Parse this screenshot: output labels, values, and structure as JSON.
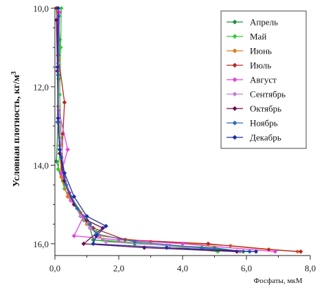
{
  "chart_data": {
    "type": "scatter",
    "title": "",
    "xlabel": "Фосфаты, мкМ",
    "ylabel": "Условная плотность, кг/м",
    "ylabel_sup": "3",
    "xlim": [
      0,
      8
    ],
    "ylim": [
      16.3,
      10
    ],
    "y_inverted": true,
    "xticks": [
      0,
      2,
      4,
      6,
      8
    ],
    "xtick_labels": [
      "0,0",
      "2,0",
      "4,0",
      "6,0",
      "8,0"
    ],
    "yticks": [
      10,
      12,
      14,
      16
    ],
    "ytick_labels": [
      "10,0",
      "12,0",
      "14,0",
      "16,0"
    ],
    "grid": false,
    "legend_position": "top-right",
    "series": [
      {
        "name": "Апрель",
        "color": "#1f8f3a",
        "points": [
          [
            0.1,
            10.0
          ],
          [
            0.15,
            10.8
          ],
          [
            0.12,
            11.8
          ],
          [
            0.1,
            12.8
          ],
          [
            0.05,
            13.9
          ],
          [
            0.25,
            14.4
          ],
          [
            0.5,
            14.8
          ],
          [
            0.9,
            15.3
          ],
          [
            1.1,
            15.6
          ],
          [
            1.2,
            15.9
          ],
          [
            2.5,
            16.0
          ],
          [
            5.0,
            16.1
          ],
          [
            5.9,
            16.2
          ]
        ]
      },
      {
        "name": "Май",
        "color": "#33cc33",
        "points": [
          [
            0.2,
            10.0
          ],
          [
            0.18,
            11.0
          ],
          [
            0.15,
            12.2
          ],
          [
            0.2,
            13.3
          ],
          [
            0.1,
            14.1
          ],
          [
            0.3,
            14.6
          ],
          [
            0.6,
            15.0
          ],
          [
            0.9,
            15.4
          ],
          [
            1.3,
            15.7
          ],
          [
            1.5,
            15.9
          ],
          [
            3.5,
            16.05
          ],
          [
            5.1,
            16.2
          ]
        ]
      },
      {
        "name": "Июнь",
        "color": "#e07b1e",
        "points": [
          [
            0.1,
            10.1
          ],
          [
            0.12,
            11.3
          ],
          [
            0.1,
            12.5
          ],
          [
            0.15,
            13.5
          ],
          [
            0.2,
            14.3
          ],
          [
            0.4,
            14.8
          ],
          [
            0.8,
            15.2
          ],
          [
            1.0,
            15.5
          ],
          [
            1.4,
            15.8
          ],
          [
            3.0,
            15.95
          ],
          [
            5.5,
            16.05
          ],
          [
            7.6,
            16.2
          ]
        ]
      },
      {
        "name": "Июль",
        "color": "#b52525",
        "points": [
          [
            0.05,
            10.0
          ],
          [
            0.1,
            11.2
          ],
          [
            0.3,
            12.4
          ],
          [
            0.25,
            13.2
          ],
          [
            0.2,
            14.2
          ],
          [
            0.45,
            14.7
          ],
          [
            0.7,
            15.1
          ],
          [
            1.0,
            15.4
          ],
          [
            1.2,
            15.6
          ],
          [
            2.2,
            15.9
          ],
          [
            4.8,
            16.0
          ],
          [
            6.7,
            16.15
          ],
          [
            7.7,
            16.2
          ]
        ]
      },
      {
        "name": "Август",
        "color": "#e63fe6",
        "points": [
          [
            0.15,
            10.1
          ],
          [
            0.1,
            11.5
          ],
          [
            0.12,
            12.6
          ],
          [
            0.4,
            13.6
          ],
          [
            0.2,
            14.2
          ],
          [
            0.5,
            14.9
          ],
          [
            0.9,
            15.3
          ],
          [
            0.6,
            15.8
          ],
          [
            2.0,
            15.9
          ],
          [
            4.0,
            16.0
          ],
          [
            6.9,
            16.2
          ]
        ]
      },
      {
        "name": "Сентябрь",
        "color": "#c77fd1",
        "points": [
          [
            0.1,
            10.2
          ],
          [
            0.1,
            11.4
          ],
          [
            0.12,
            12.7
          ],
          [
            0.2,
            13.4
          ],
          [
            0.3,
            14.3
          ],
          [
            0.55,
            14.9
          ],
          [
            0.8,
            15.3
          ],
          [
            1.1,
            15.6
          ],
          [
            1.6,
            15.95
          ],
          [
            3.6,
            16.05
          ],
          [
            5.8,
            16.2
          ]
        ]
      },
      {
        "name": "Октябрь",
        "color": "#6a0f4f",
        "points": [
          [
            0.05,
            10.3
          ],
          [
            0.08,
            11.6
          ],
          [
            0.1,
            12.9
          ],
          [
            0.15,
            13.7
          ],
          [
            0.3,
            14.4
          ],
          [
            0.6,
            15.0
          ],
          [
            1.0,
            15.4
          ],
          [
            1.5,
            15.6
          ],
          [
            0.9,
            16.0
          ],
          [
            2.8,
            16.1
          ],
          [
            5.7,
            16.2
          ]
        ]
      },
      {
        "name": "Ноябрь",
        "color": "#2e6db4",
        "points": [
          [
            0.12,
            10.2
          ],
          [
            0.1,
            11.7
          ],
          [
            0.08,
            12.9
          ],
          [
            0.2,
            13.8
          ],
          [
            0.35,
            14.5
          ],
          [
            0.7,
            15.1
          ],
          [
            1.1,
            15.5
          ],
          [
            1.3,
            15.75
          ],
          [
            2.5,
            15.95
          ],
          [
            4.6,
            16.1
          ],
          [
            6.1,
            16.2
          ]
        ]
      },
      {
        "name": "Декабрь",
        "color": "#1a2fa8",
        "points": [
          [
            0.1,
            10.0
          ],
          [
            0.08,
            11.5
          ],
          [
            0.1,
            12.8
          ],
          [
            0.15,
            13.6
          ],
          [
            0.3,
            14.2
          ],
          [
            0.6,
            14.8
          ],
          [
            1.0,
            15.3
          ],
          [
            1.6,
            15.55
          ],
          [
            1.3,
            15.8
          ],
          [
            1.2,
            16.0
          ],
          [
            3.5,
            16.1
          ],
          [
            6.3,
            16.2
          ]
        ]
      }
    ]
  }
}
